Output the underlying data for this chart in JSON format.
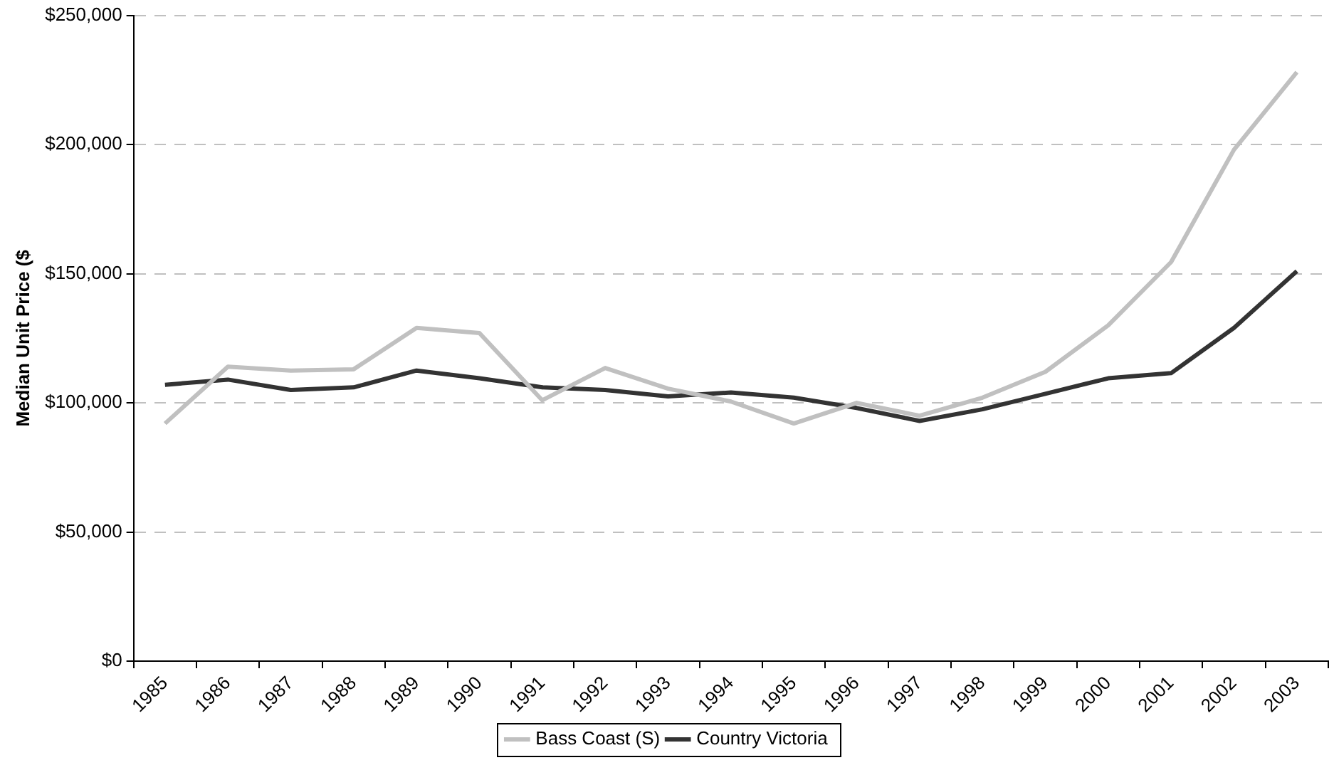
{
  "chart_data": {
    "type": "line",
    "ylabel": "Median Unit Price ($",
    "categories": [
      "1985",
      "1986",
      "1987",
      "1988",
      "1989",
      "1990",
      "1991",
      "1992",
      "1993",
      "1994",
      "1995",
      "1996",
      "1997",
      "1998",
      "1999",
      "2000",
      "2001",
      "2002",
      "2003"
    ],
    "series": [
      {
        "name": "Bass Coast (S)",
        "color": "#c0c0c0",
        "values": [
          92000,
          114000,
          112500,
          113000,
          129000,
          127000,
          101000,
          113500,
          105500,
          100500,
          92000,
          100000,
          95000,
          102000,
          112000,
          130000,
          154500,
          198000,
          228000
        ]
      },
      {
        "name": "Country Victoria",
        "color": "#333333",
        "values": [
          107000,
          109000,
          105000,
          106000,
          112500,
          109500,
          106000,
          105000,
          102500,
          104000,
          102000,
          98000,
          93000,
          97500,
          103500,
          109500,
          111500,
          129000,
          151000
        ]
      }
    ],
    "ylim": [
      0,
      250000
    ],
    "yticks": [
      {
        "value": 0,
        "label": "$0"
      },
      {
        "value": 50000,
        "label": "$50,000"
      },
      {
        "value": 100000,
        "label": "$100,000"
      },
      {
        "value": 150000,
        "label": "$150,000"
      },
      {
        "value": 200000,
        "label": "$200,000"
      },
      {
        "value": 250000,
        "label": "$250,000"
      }
    ],
    "grid": "y",
    "legend": "bottom",
    "marker": "none",
    "line_style": "solid"
  }
}
